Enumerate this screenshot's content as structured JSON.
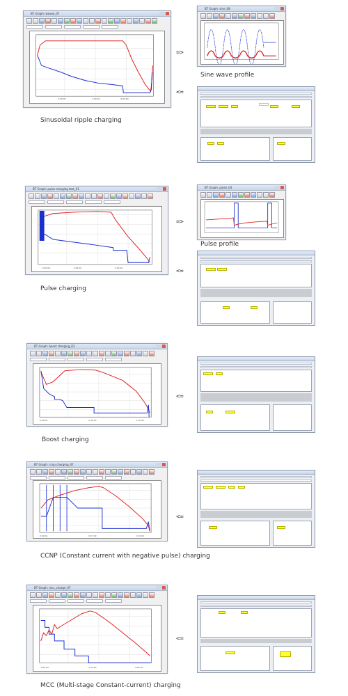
{
  "sections": [
    {
      "id": "sine",
      "caption": "Sinusoidal ripple charging",
      "window_title": "BT Graph: waveo_07",
      "profile_title": "BT Graph: sine_08",
      "profile_caption": "Sine wave profile",
      "arrow_out": "=>",
      "arrow_in": "<="
    },
    {
      "id": "pulse",
      "caption": "Pulse charging",
      "window_title": "BT Graph: pulse charging test_01",
      "profile_title": "BT Graph: pulse_03",
      "profile_caption": "Pulse profile",
      "arrow_out": "=>",
      "arrow_in": "<="
    },
    {
      "id": "boost",
      "caption": "Boost charging",
      "window_title": "BT Graph: boost charging_03",
      "arrow_in": "<="
    },
    {
      "id": "ccnp",
      "caption": "CCNP (Constant current with negative pulse) charging",
      "window_title": "BT Graph: ccnp charging_07",
      "arrow_in": "<="
    },
    {
      "id": "mcc",
      "caption": "MCC (Multi-stage Constant-current) charging",
      "window_title": "BT Graph: mcc_charge_07",
      "arrow_in": "<="
    }
  ],
  "colors": {
    "voltage": "#e02020",
    "current": "#1a2fd0"
  }
}
